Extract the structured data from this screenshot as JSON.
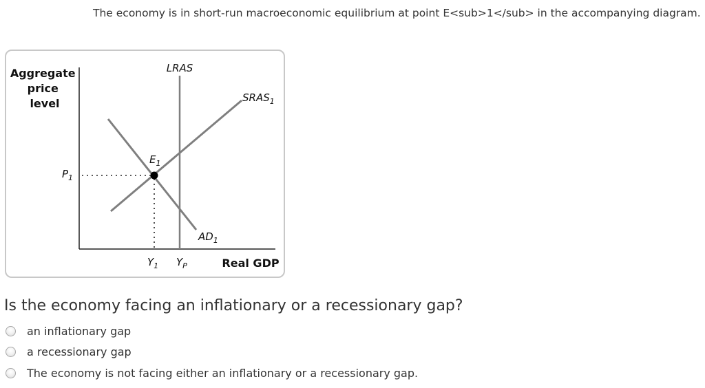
{
  "intro_text": "The economy is in short-run macroeconomic equilibrium at point E<sub>1</sub> in the accompanying diagram.",
  "figure": {
    "y_axis_label": [
      "Aggregate",
      "price",
      "level"
    ],
    "x_axis_label": "Real GDP",
    "lras_label": "LRAS",
    "sras_label": {
      "base": "SRAS",
      "sub": "1"
    },
    "ad_label": {
      "base": "AD",
      "sub": "1"
    },
    "eq_label": {
      "base": "E",
      "sub": "1"
    },
    "price_label": {
      "base": "P",
      "sub": "1"
    },
    "y1_label": {
      "base": "Y",
      "sub": "1"
    },
    "yp_label": {
      "base": "Y",
      "sub": "P"
    },
    "colors": {
      "curve": "#7f7f7f",
      "axis": "#222222",
      "point": "#000000"
    }
  },
  "question": "Is the economy facing an inflationary or a recessionary gap?",
  "options": [
    "an inflationary gap",
    "a recessionary gap",
    "The economy is not facing either an inflationary or a recessionary gap."
  ]
}
